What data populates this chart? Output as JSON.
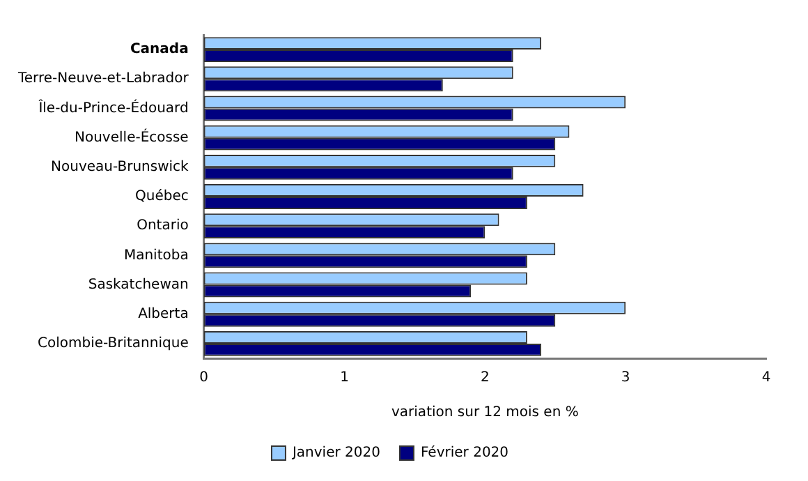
{
  "chart_data": {
    "type": "bar",
    "orientation": "horizontal",
    "xlabel": "variation sur 12 mois en %",
    "categories": [
      "Canada",
      "Terre-Neuve-et-Labrador",
      "Île-du-Prince-Édouard",
      "Nouvelle-Écosse",
      "Nouveau-Brunswick",
      "Québec",
      "Ontario",
      "Manitoba",
      "Saskatchewan",
      "Alberta",
      "Colombie-Britannique"
    ],
    "series": [
      {
        "name": "Janvier 2020",
        "color": "#99ccff",
        "values": [
          2.4,
          2.2,
          3.0,
          2.6,
          2.5,
          2.7,
          2.1,
          2.5,
          2.3,
          3.0,
          2.3
        ]
      },
      {
        "name": "Février 2020",
        "color": "#000080",
        "values": [
          2.2,
          1.7,
          2.2,
          2.5,
          2.2,
          2.3,
          2.0,
          2.3,
          1.9,
          2.5,
          2.4
        ]
      }
    ],
    "xlim": [
      0,
      4
    ],
    "xticks": [
      0,
      1,
      2,
      3,
      4
    ],
    "grid": false,
    "legend": "bottom"
  }
}
